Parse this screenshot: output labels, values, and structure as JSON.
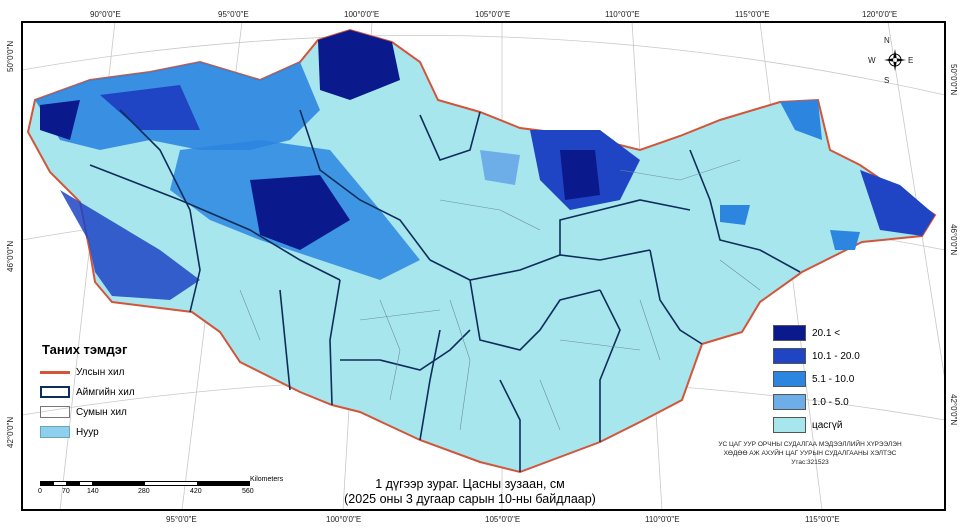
{
  "map": {
    "caption_line1": "1 дүгээр зураг. Цасны зузаан, см",
    "caption_line2": "(2025 оны 3 дугаар сарын 10-ны байдлаар)",
    "institute_line1": "УС ЦАГ УУР ОРЧНЫ СУДАЛГАА МЭДЭЭЛЛИЙН ХҮРЭЭЛЭН",
    "institute_line2": "ХӨДӨӨ АЖ АХУЙН ЦАГ УУРЫН СУДАЛГААНЫ ХЭЛТЭС",
    "institute_phone": "Утас:321523",
    "north_arrow": {
      "n": "N",
      "s": "S",
      "e": "E",
      "w": "W"
    },
    "top_lon_labels": [
      "90°0'0\"E",
      "95°0'0\"E",
      "100°0'0\"E",
      "105°0'0\"E",
      "110°0'0\"E",
      "115°0'0\"E",
      "120°0'0\"E"
    ],
    "bottom_lon_labels": [
      "95°0'0\"E",
      "100°0'0\"E",
      "105°0'0\"E",
      "110°0'0\"E",
      "115°0'0\"E"
    ],
    "left_lat_labels": [
      "50°0'0\"N",
      "46°0'0\"N",
      "42°0'0\"N"
    ],
    "right_lat_labels": [
      "50°0'0\"N",
      "46°0'0\"N",
      "42°0'0\"N"
    ]
  },
  "legend": {
    "title": "Таних тэмдэг",
    "items": [
      {
        "label": "Улсын хил",
        "color": "#d2553a"
      },
      {
        "label": "Аймгийн хил",
        "color": "#0f2d5a"
      },
      {
        "label": "Сумын хил",
        "color": "#777777"
      },
      {
        "label": "Нуур",
        "color": "#8fd0f0"
      }
    ]
  },
  "snow_classes": [
    {
      "label": "20.1 <",
      "color": "#0a1a8c"
    },
    {
      "label": "10.1 - 20.0",
      "color": "#1f44c4"
    },
    {
      "label": "5.1 - 10.0",
      "color": "#2c86e0"
    },
    {
      "label": "1.0 - 5.0",
      "color": "#6eaee8"
    },
    {
      "label": "цасгүй",
      "color": "#a8e6ee"
    }
  ],
  "scale_bar": {
    "unit": "Kilometers",
    "labels": [
      "0",
      "70",
      "140",
      "280",
      "420",
      "560"
    ]
  }
}
